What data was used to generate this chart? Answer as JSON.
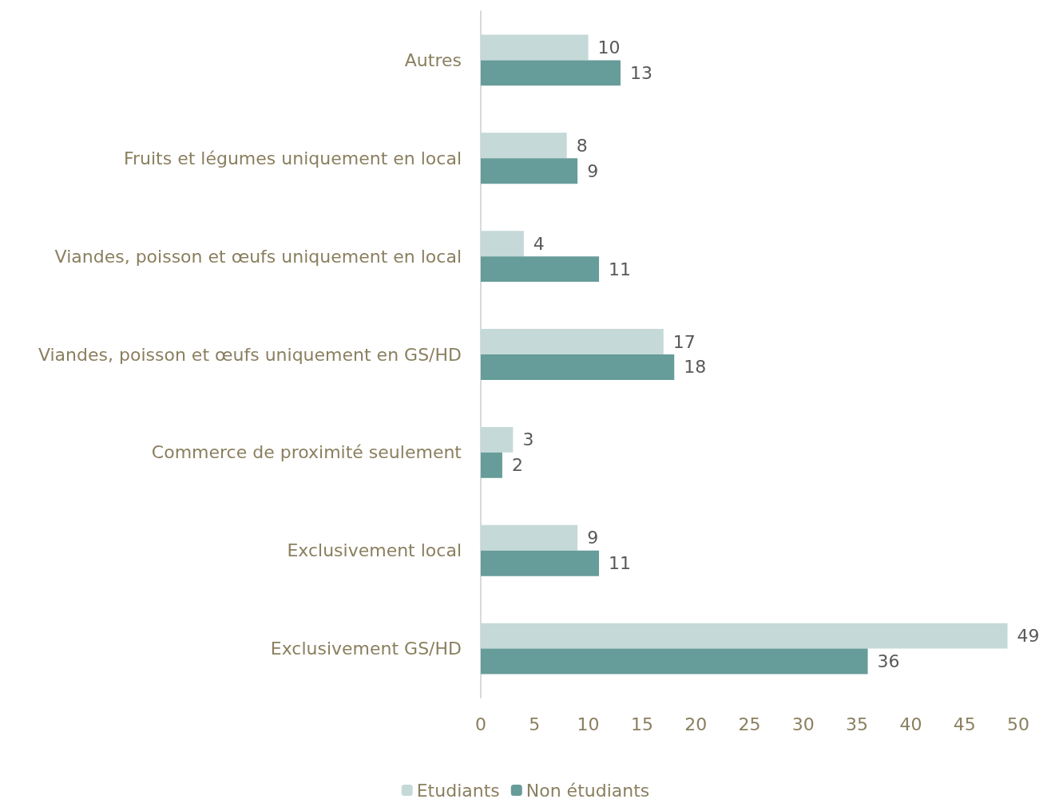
{
  "chart_data": {
    "type": "bar",
    "orientation": "horizontal",
    "categories": [
      "Autres",
      "Fruits et légumes uniquement en local",
      "Viandes, poisson et œufs uniquement en local",
      "Viandes, poisson et œufs uniquement en GS/HD",
      "Commerce de proximité seulement",
      "Exclusivement local",
      "Exclusivement GS/HD"
    ],
    "series": [
      {
        "name": "Etudiants",
        "color": "#c4d9d8",
        "values": [
          10,
          8,
          4,
          17,
          3,
          9,
          49
        ]
      },
      {
        "name": "Non étudiants",
        "color": "#669c99",
        "values": [
          13,
          9,
          11,
          18,
          2,
          11,
          36
        ]
      }
    ],
    "xlim": [
      0,
      50
    ],
    "xticks": [
      0,
      5,
      10,
      15,
      20,
      25,
      30,
      35,
      40,
      45,
      50
    ],
    "data_labels": true,
    "grid": false,
    "legend": "bottom"
  }
}
